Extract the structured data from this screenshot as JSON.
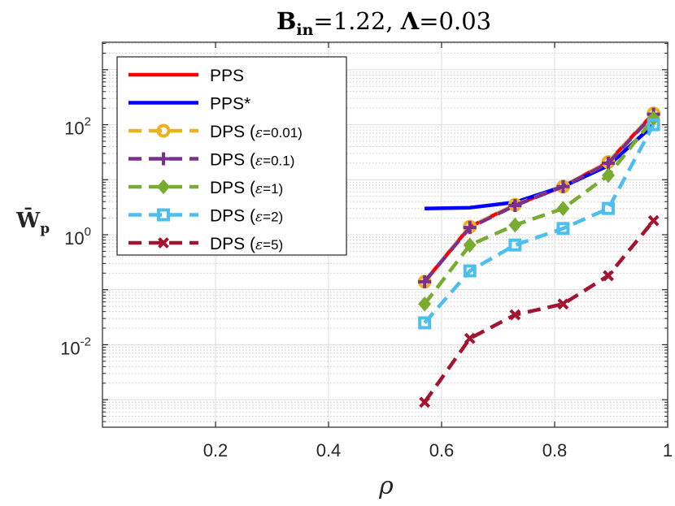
{
  "chart_data": {
    "type": "line",
    "title": {
      "bold_B": "B",
      "sub_in": "in",
      "eq1": "=1.22, ",
      "bold_L": "Λ",
      "eq2": "=0.03"
    },
    "xlabel": "ρ",
    "ylabel": {
      "main": "W̄",
      "sub": "p"
    },
    "xlim": [
      0,
      1
    ],
    "ylim_log10": [
      -3.5,
      3.5
    ],
    "xscale": "linear",
    "yscale": "log",
    "grid": true,
    "minor_grid": true,
    "legend_position": "top-left",
    "x_ticks": [
      {
        "value": 0.2,
        "label": "0.2"
      },
      {
        "value": 0.4,
        "label": "0.4"
      },
      {
        "value": 0.6,
        "label": "0.6"
      },
      {
        "value": 0.8,
        "label": "0.8"
      },
      {
        "value": 1.0,
        "label": "1"
      }
    ],
    "y_ticks": [
      {
        "exp": 2,
        "base": "10",
        "sup": "2"
      },
      {
        "exp": 0,
        "base": "10",
        "sup": "0"
      },
      {
        "exp": -2,
        "base": "10",
        "sup": "-2"
      }
    ],
    "series": [
      {
        "name": "PPS",
        "label": "PPS",
        "color": "#ff0000",
        "dash": "solid",
        "marker": "none",
        "x": [
          0.57,
          0.65,
          0.73,
          0.815,
          0.895,
          0.975
        ],
        "y": [
          0.14,
          1.4,
          3.5,
          7.5,
          21,
          160
        ]
      },
      {
        "name": "PPS*",
        "label": "PPS*",
        "color": "#0000ff",
        "dash": "solid",
        "marker": "none",
        "x": [
          0.57,
          0.65,
          0.73,
          0.815,
          0.895,
          0.975
        ],
        "y": [
          3.0,
          3.1,
          3.9,
          7.5,
          18,
          100
        ]
      },
      {
        "name": "DPS eps 0.01",
        "label": "DPS (",
        "eps": "ε",
        "eq": "=0.01)",
        "color": "#edb120",
        "dash": "dashed",
        "marker": "circle",
        "x": [
          0.57,
          0.65,
          0.73,
          0.815,
          0.895,
          0.975
        ],
        "y": [
          0.14,
          1.4,
          3.5,
          7.5,
          21,
          160
        ]
      },
      {
        "name": "DPS eps 0.1",
        "label": "DPS (",
        "eps": "ε",
        "eq": "=0.1)",
        "color": "#7e2f8e",
        "dash": "dashed",
        "marker": "plus",
        "x": [
          0.57,
          0.65,
          0.73,
          0.815,
          0.895,
          0.975
        ],
        "y": [
          0.14,
          1.35,
          3.4,
          7.5,
          20,
          155
        ]
      },
      {
        "name": "DPS eps 1",
        "label": "DPS (",
        "eps": "ε",
        "eq": "=1)",
        "color": "#77ac30",
        "dash": "dashed",
        "marker": "diamond",
        "x": [
          0.57,
          0.65,
          0.73,
          0.815,
          0.895,
          0.975
        ],
        "y": [
          0.055,
          0.65,
          1.5,
          3.0,
          12,
          130
        ]
      },
      {
        "name": "DPS eps 2",
        "label": "DPS (",
        "eps": "ε",
        "eq": "=2)",
        "color": "#4dbeee",
        "dash": "dashed",
        "marker": "square",
        "x": [
          0.57,
          0.65,
          0.73,
          0.815,
          0.895,
          0.975
        ],
        "y": [
          0.025,
          0.22,
          0.65,
          1.3,
          3.0,
          100
        ]
      },
      {
        "name": "DPS eps 5",
        "label": "DPS (",
        "eps": "ε",
        "eq": "=5)",
        "color": "#a2142f",
        "dash": "dashed",
        "marker": "x",
        "x": [
          0.57,
          0.65,
          0.73,
          0.815,
          0.895,
          0.975
        ],
        "y": [
          0.0009,
          0.013,
          0.035,
          0.055,
          0.18,
          1.8
        ]
      }
    ]
  }
}
